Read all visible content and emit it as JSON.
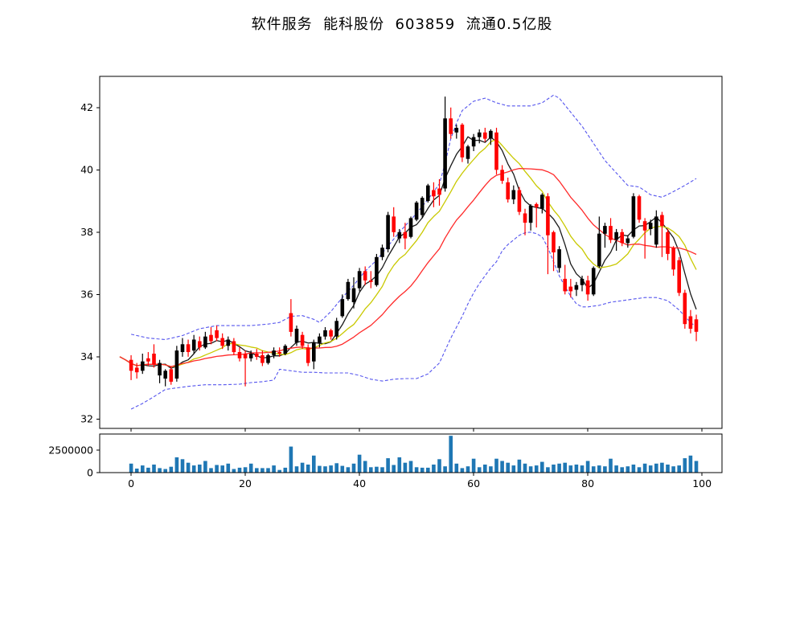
{
  "title": "软件服务  能科股份  603859  流通0.5亿股",
  "chart_data": {
    "type": "candlestick",
    "title": "软件服务  能科股份  603859  流通0.5亿股",
    "panels": [
      "price",
      "volume"
    ],
    "grid": false,
    "x_axis": {
      "ticks": [
        0,
        20,
        40,
        60,
        80,
        100
      ],
      "range": [
        -5.5,
        103.5
      ]
    },
    "price_axis": {
      "ticks": [
        32,
        34,
        36,
        38,
        40,
        42
      ],
      "range": [
        31.7,
        43.0
      ]
    },
    "volume_axis": {
      "ticks": [
        0,
        2500000
      ],
      "range": [
        0,
        4300000
      ]
    },
    "candles": {
      "up_color": "#000000",
      "down_color": "#ff0000",
      "ohlc": [
        [
          33.9,
          34.05,
          33.25,
          33.55
        ],
        [
          33.65,
          33.8,
          33.3,
          33.5
        ],
        [
          33.55,
          34.1,
          33.45,
          33.85
        ],
        [
          33.95,
          34.15,
          33.7,
          33.85
        ],
        [
          34.1,
          34.4,
          33.65,
          33.75
        ],
        [
          33.4,
          33.9,
          33.15,
          33.8
        ],
        [
          33.3,
          33.6,
          33.05,
          33.55
        ],
        [
          33.6,
          33.7,
          33.1,
          33.2
        ],
        [
          33.3,
          34.35,
          33.2,
          34.2
        ],
        [
          34.15,
          34.6,
          34.0,
          34.4
        ],
        [
          34.4,
          34.55,
          34.0,
          34.15
        ],
        [
          34.2,
          34.7,
          34.1,
          34.55
        ],
        [
          34.5,
          34.65,
          34.2,
          34.3
        ],
        [
          34.3,
          34.8,
          34.25,
          34.65
        ],
        [
          34.7,
          34.95,
          34.4,
          34.5
        ],
        [
          34.85,
          35.0,
          34.5,
          34.6
        ],
        [
          34.6,
          34.75,
          34.25,
          34.35
        ],
        [
          34.35,
          34.65,
          34.2,
          34.55
        ],
        [
          34.5,
          34.6,
          34.05,
          34.15
        ],
        [
          34.15,
          34.3,
          33.85,
          33.95
        ],
        [
          34.1,
          34.2,
          33.05,
          33.95
        ],
        [
          33.95,
          34.2,
          33.85,
          34.1
        ],
        [
          34.1,
          34.25,
          33.9,
          34.0
        ],
        [
          34.05,
          34.2,
          33.7,
          33.8
        ],
        [
          33.8,
          34.1,
          33.75,
          34.05
        ],
        [
          34.05,
          34.3,
          33.95,
          34.2
        ],
        [
          34.15,
          34.3,
          34.0,
          34.1
        ],
        [
          34.1,
          34.4,
          34.05,
          34.35
        ],
        [
          35.4,
          35.85,
          34.65,
          34.8
        ],
        [
          34.45,
          35.0,
          34.35,
          34.9
        ],
        [
          34.7,
          34.8,
          34.25,
          34.35
        ],
        [
          34.3,
          34.4,
          33.7,
          33.8
        ],
        [
          33.85,
          34.55,
          33.6,
          34.45
        ],
        [
          34.45,
          34.75,
          34.3,
          34.65
        ],
        [
          34.65,
          34.95,
          34.55,
          34.85
        ],
        [
          34.85,
          34.9,
          34.55,
          34.65
        ],
        [
          34.65,
          35.25,
          34.55,
          35.15
        ],
        [
          35.3,
          36.0,
          35.25,
          35.85
        ],
        [
          35.85,
          36.5,
          35.8,
          36.4
        ],
        [
          35.75,
          36.55,
          35.55,
          36.2
        ],
        [
          36.2,
          36.85,
          36.1,
          36.75
        ],
        [
          36.75,
          36.9,
          36.3,
          36.45
        ],
        [
          36.45,
          36.75,
          36.2,
          36.4
        ],
        [
          36.3,
          37.3,
          36.25,
          37.2
        ],
        [
          37.2,
          37.6,
          37.1,
          37.5
        ],
        [
          37.45,
          38.65,
          37.35,
          38.55
        ],
        [
          38.5,
          38.8,
          37.85,
          38.0
        ],
        [
          37.8,
          38.1,
          37.65,
          38.0
        ],
        [
          38.0,
          38.3,
          37.45,
          37.8
        ],
        [
          37.85,
          38.5,
          37.8,
          38.45
        ],
        [
          38.4,
          39.0,
          38.35,
          38.95
        ],
        [
          38.55,
          39.15,
          38.45,
          39.1
        ],
        [
          39.0,
          39.55,
          38.95,
          39.5
        ],
        [
          39.35,
          39.6,
          38.8,
          39.15
        ],
        [
          39.4,
          39.7,
          38.85,
          39.2
        ],
        [
          39.4,
          42.35,
          39.3,
          41.65
        ],
        [
          41.65,
          42.0,
          41.0,
          41.15
        ],
        [
          41.2,
          41.45,
          41.0,
          41.35
        ],
        [
          41.45,
          41.5,
          40.25,
          40.4
        ],
        [
          40.35,
          40.8,
          40.2,
          40.75
        ],
        [
          40.75,
          41.15,
          40.6,
          41.05
        ],
        [
          41.05,
          41.3,
          40.85,
          41.2
        ],
        [
          41.2,
          41.35,
          40.9,
          41.0
        ],
        [
          41.0,
          41.3,
          40.8,
          41.25
        ],
        [
          41.2,
          41.35,
          39.85,
          40.0
        ],
        [
          40.0,
          40.15,
          39.55,
          39.65
        ],
        [
          39.6,
          39.75,
          38.95,
          39.05
        ],
        [
          39.05,
          39.5,
          38.9,
          39.35
        ],
        [
          39.35,
          39.45,
          38.55,
          38.65
        ],
        [
          38.6,
          38.75,
          37.9,
          38.3
        ],
        [
          38.3,
          38.9,
          38.05,
          38.85
        ],
        [
          38.9,
          38.95,
          38.15,
          38.8
        ],
        [
          38.75,
          39.25,
          38.6,
          39.2
        ],
        [
          39.15,
          39.25,
          36.65,
          37.9
        ],
        [
          38.0,
          38.05,
          36.75,
          37.35
        ],
        [
          36.85,
          37.55,
          36.7,
          37.45
        ],
        [
          36.5,
          36.95,
          36.0,
          36.1
        ],
        [
          36.25,
          36.5,
          35.9,
          36.1
        ],
        [
          36.15,
          36.4,
          35.95,
          36.3
        ],
        [
          36.3,
          36.6,
          36.1,
          36.5
        ],
        [
          36.45,
          36.6,
          35.8,
          36.0
        ],
        [
          36.0,
          36.9,
          35.95,
          36.85
        ],
        [
          36.9,
          38.5,
          36.85,
          37.95
        ],
        [
          37.95,
          38.3,
          37.5,
          38.2
        ],
        [
          38.2,
          38.45,
          37.65,
          37.75
        ],
        [
          37.75,
          38.1,
          37.4,
          38.0
        ],
        [
          38.0,
          38.1,
          37.55,
          37.65
        ],
        [
          37.65,
          37.9,
          37.5,
          37.8
        ],
        [
          37.85,
          39.25,
          37.8,
          39.15
        ],
        [
          39.15,
          39.2,
          38.3,
          38.4
        ],
        [
          38.35,
          38.45,
          37.15,
          38.05
        ],
        [
          38.1,
          38.4,
          37.9,
          38.3
        ],
        [
          37.6,
          38.7,
          37.5,
          38.5
        ],
        [
          38.55,
          38.65,
          37.2,
          38.2
        ],
        [
          38.0,
          38.1,
          37.1,
          37.3
        ],
        [
          37.5,
          37.55,
          36.6,
          36.8
        ],
        [
          37.1,
          37.2,
          35.95,
          36.05
        ],
        [
          36.05,
          36.15,
          34.9,
          35.05
        ],
        [
          35.3,
          35.5,
          34.75,
          34.9
        ],
        [
          35.2,
          35.35,
          34.5,
          34.8
        ]
      ]
    },
    "volume": {
      "color": "#1f77b4",
      "values": [
        1000000,
        450000,
        800000,
        550000,
        900000,
        500000,
        400000,
        650000,
        1700000,
        1500000,
        1100000,
        800000,
        900000,
        1300000,
        500000,
        850000,
        800000,
        1000000,
        400000,
        550000,
        600000,
        1000000,
        500000,
        500000,
        500000,
        800000,
        300000,
        550000,
        2900000,
        700000,
        1100000,
        900000,
        1900000,
        750000,
        700000,
        800000,
        1050000,
        750000,
        600000,
        1000000,
        2000000,
        1300000,
        600000,
        650000,
        600000,
        1600000,
        850000,
        1700000,
        1100000,
        1300000,
        600000,
        550000,
        550000,
        900000,
        1500000,
        700000,
        4100000,
        1000000,
        500000,
        700000,
        1550000,
        600000,
        900000,
        700000,
        1550000,
        1300000,
        1100000,
        800000,
        1450000,
        1000000,
        700000,
        800000,
        1200000,
        600000,
        900000,
        1000000,
        1100000,
        800000,
        900000,
        800000,
        1300000,
        700000,
        800000,
        700000,
        1550000,
        800000,
        600000,
        700000,
        900000,
        600000,
        1000000,
        800000,
        1000000,
        1100000,
        900000,
        700000,
        800000,
        1600000,
        1900000,
        1300000
      ]
    },
    "overlays": {
      "ma_lines": [
        {
          "name": "ma5",
          "window": 5,
          "color": "#1a1a1a"
        },
        {
          "name": "ma10",
          "window": 10,
          "color": "#c9c900"
        },
        {
          "name": "ma20",
          "window": 20,
          "color": "#ff2a2a"
        }
      ],
      "lead_in_closes": [
        34.0,
        33.8
      ],
      "bollinger_upper": {
        "color": "#5555ee",
        "style": "dashed",
        "points": [
          [
            0,
            34.72
          ],
          [
            3,
            34.6
          ],
          [
            6,
            34.55
          ],
          [
            9,
            34.68
          ],
          [
            12,
            34.9
          ],
          [
            15,
            35.0
          ],
          [
            18,
            35.0
          ],
          [
            21,
            35.0
          ],
          [
            24,
            35.05
          ],
          [
            26,
            35.1
          ],
          [
            28,
            35.3
          ],
          [
            30,
            35.32
          ],
          [
            32,
            35.2
          ],
          [
            33,
            35.1
          ],
          [
            35,
            35.45
          ],
          [
            37,
            35.9
          ],
          [
            39,
            36.3
          ],
          [
            41,
            36.75
          ],
          [
            43,
            37.1
          ],
          [
            45,
            37.55
          ],
          [
            47,
            38.0
          ],
          [
            50,
            38.6
          ],
          [
            52,
            39.05
          ],
          [
            54,
            39.55
          ],
          [
            55,
            40.2
          ],
          [
            56,
            41.0
          ],
          [
            57,
            41.5
          ],
          [
            58,
            41.9
          ],
          [
            60,
            42.2
          ],
          [
            62,
            42.3
          ],
          [
            64,
            42.15
          ],
          [
            66,
            42.05
          ],
          [
            68,
            42.05
          ],
          [
            70,
            42.05
          ],
          [
            72,
            42.15
          ],
          [
            74,
            42.4
          ],
          [
            75,
            42.3
          ],
          [
            77,
            41.85
          ],
          [
            79,
            41.4
          ],
          [
            81,
            40.85
          ],
          [
            83,
            40.3
          ],
          [
            85,
            39.9
          ],
          [
            87,
            39.5
          ],
          [
            89,
            39.45
          ],
          [
            91,
            39.2
          ],
          [
            93,
            39.12
          ],
          [
            95,
            39.3
          ],
          [
            97,
            39.5
          ],
          [
            99,
            39.72
          ]
        ]
      },
      "bollinger_lower": {
        "color": "#5555ee",
        "style": "dashed",
        "points": [
          [
            0,
            32.32
          ],
          [
            2,
            32.5
          ],
          [
            4,
            32.72
          ],
          [
            6,
            32.95
          ],
          [
            8,
            33.0
          ],
          [
            10,
            33.05
          ],
          [
            13,
            33.1
          ],
          [
            16,
            33.1
          ],
          [
            19,
            33.12
          ],
          [
            21,
            33.17
          ],
          [
            23,
            33.2
          ],
          [
            25,
            33.25
          ],
          [
            26,
            33.6
          ],
          [
            28,
            33.55
          ],
          [
            30,
            33.5
          ],
          [
            32,
            33.5
          ],
          [
            34,
            33.48
          ],
          [
            36,
            33.48
          ],
          [
            38,
            33.48
          ],
          [
            40,
            33.4
          ],
          [
            42,
            33.28
          ],
          [
            44,
            33.22
          ],
          [
            46,
            33.28
          ],
          [
            48,
            33.3
          ],
          [
            50,
            33.3
          ],
          [
            52,
            33.45
          ],
          [
            54,
            33.8
          ],
          [
            55,
            34.2
          ],
          [
            56,
            34.6
          ],
          [
            57,
            34.95
          ],
          [
            58,
            35.3
          ],
          [
            59,
            35.7
          ],
          [
            60,
            36.05
          ],
          [
            61,
            36.35
          ],
          [
            62,
            36.6
          ],
          [
            63,
            36.85
          ],
          [
            64,
            37.05
          ],
          [
            65,
            37.4
          ],
          [
            66,
            37.6
          ],
          [
            67,
            37.75
          ],
          [
            68,
            37.9
          ],
          [
            69,
            37.98
          ],
          [
            70,
            38.0
          ],
          [
            71,
            37.95
          ],
          [
            72,
            37.85
          ],
          [
            73,
            37.5
          ],
          [
            74,
            37.05
          ],
          [
            75,
            36.6
          ],
          [
            76,
            36.25
          ],
          [
            77,
            35.95
          ],
          [
            78,
            35.7
          ],
          [
            79,
            35.6
          ],
          [
            80,
            35.6
          ],
          [
            82,
            35.65
          ],
          [
            84,
            35.75
          ],
          [
            86,
            35.8
          ],
          [
            88,
            35.85
          ],
          [
            90,
            35.9
          ],
          [
            92,
            35.9
          ],
          [
            94,
            35.8
          ],
          [
            96,
            35.5
          ],
          [
            98,
            35.1
          ],
          [
            99,
            34.95
          ]
        ]
      }
    }
  }
}
